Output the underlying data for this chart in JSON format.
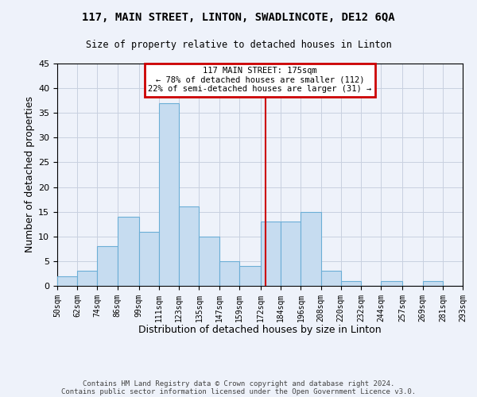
{
  "title": "117, MAIN STREET, LINTON, SWADLINCOTE, DE12 6QA",
  "subtitle": "Size of property relative to detached houses in Linton",
  "xlabel": "Distribution of detached houses by size in Linton",
  "ylabel": "Number of detached properties",
  "bins": [
    50,
    62,
    74,
    86,
    99,
    111,
    123,
    135,
    147,
    159,
    172,
    184,
    196,
    208,
    220,
    232,
    244,
    257,
    269,
    281,
    293
  ],
  "counts": [
    2,
    3,
    8,
    14,
    11,
    37,
    16,
    10,
    5,
    4,
    13,
    13,
    15,
    3,
    1,
    0,
    1,
    0,
    1,
    0
  ],
  "tick_labels": [
    "50sqm",
    "62sqm",
    "74sqm",
    "86sqm",
    "99sqm",
    "111sqm",
    "123sqm",
    "135sqm",
    "147sqm",
    "159sqm",
    "172sqm",
    "184sqm",
    "196sqm",
    "208sqm",
    "220sqm",
    "232sqm",
    "244sqm",
    "257sqm",
    "269sqm",
    "281sqm",
    "293sqm"
  ],
  "bar_color": "#c6dcf0",
  "bar_edge_color": "#6baed6",
  "vline_x": 175,
  "vline_color": "#cc0000",
  "ylim": [
    0,
    45
  ],
  "yticks": [
    0,
    5,
    10,
    15,
    20,
    25,
    30,
    35,
    40,
    45
  ],
  "annotation_title": "117 MAIN STREET: 175sqm",
  "annotation_line1": "← 78% of detached houses are smaller (112)",
  "annotation_line2": "22% of semi-detached houses are larger (31) →",
  "annotation_box_color": "#cc0000",
  "footer1": "Contains HM Land Registry data © Crown copyright and database right 2024.",
  "footer2": "Contains public sector information licensed under the Open Government Licence v3.0.",
  "bg_color": "#eef2fa",
  "grid_color": "#c8d0e0"
}
